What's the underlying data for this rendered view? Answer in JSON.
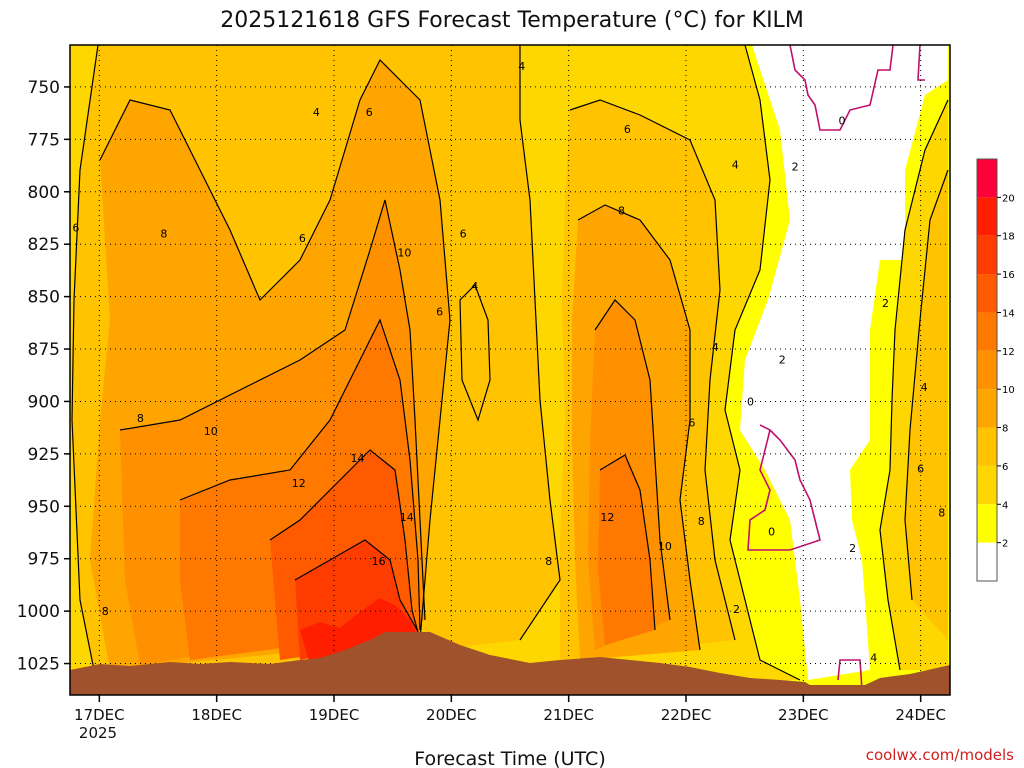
{
  "chart_data": {
    "type": "heatmap",
    "title": "2025121618 GFS Forecast Temperature (°C) for KILM",
    "xlabel": "Forecast Time (UTC)",
    "ylabel": "",
    "credit": "coolwx.com/models",
    "x_ticks": [
      "17DEC",
      "18DEC",
      "19DEC",
      "20DEC",
      "21DEC",
      "22DEC",
      "23DEC",
      "24DEC"
    ],
    "x_year": "2025",
    "x_range_days": [
      -0.25,
      7.25
    ],
    "y_ticks": [
      "750",
      "775",
      "800",
      "825",
      "850",
      "875",
      "900",
      "925",
      "950",
      "975",
      "1000",
      "1025"
    ],
    "y_range_hPa": [
      730,
      1040
    ],
    "colorbar": {
      "levels": [
        "2",
        "4",
        "6",
        "8",
        "10",
        "12",
        "14",
        "16",
        "18",
        "20"
      ],
      "colors": [
        "#ffffff",
        "#ffff00",
        "#ffd700",
        "#ffc300",
        "#ffa500",
        "#ff9000",
        "#ff7800",
        "#ff5a00",
        "#ff3c00",
        "#ff1e00",
        "#ff0038"
      ]
    },
    "colors": {
      "terrain": "#a0522d",
      "zero_contour": "#c0106e",
      "credit": "#d02020"
    },
    "contour_labels": [
      {
        "text": "4",
        "day": 1.85,
        "p": 762
      },
      {
        "text": "6",
        "day": 2.3,
        "p": 762
      },
      {
        "text": "4",
        "day": 3.6,
        "p": 740
      },
      {
        "text": "6",
        "day": 4.5,
        "p": 770
      },
      {
        "text": "4",
        "day": 5.42,
        "p": 787
      },
      {
        "text": "2",
        "day": 5.93,
        "p": 788
      },
      {
        "text": "0",
        "day": 6.33,
        "p": 766
      },
      {
        "text": "6",
        "day": -0.2,
        "p": 817
      },
      {
        "text": "8",
        "day": 0.55,
        "p": 820
      },
      {
        "text": "6",
        "day": 1.73,
        "p": 822
      },
      {
        "text": "10",
        "day": 2.6,
        "p": 829
      },
      {
        "text": "6",
        "day": 3.1,
        "p": 820
      },
      {
        "text": "8",
        "day": 4.45,
        "p": 809
      },
      {
        "text": "4",
        "day": 3.2,
        "p": 845
      },
      {
        "text": "6",
        "day": 2.9,
        "p": 857
      },
      {
        "text": "2",
        "day": 6.7,
        "p": 853
      },
      {
        "text": "4",
        "day": 5.25,
        "p": 874
      },
      {
        "text": "2",
        "day": 5.82,
        "p": 880
      },
      {
        "text": "4",
        "day": 7.03,
        "p": 893
      },
      {
        "text": "8",
        "day": 0.35,
        "p": 908
      },
      {
        "text": "10",
        "day": 0.95,
        "p": 914
      },
      {
        "text": "0",
        "day": 5.55,
        "p": 900
      },
      {
        "text": "6",
        "day": 5.05,
        "p": 910
      },
      {
        "text": "12",
        "day": 1.7,
        "p": 939
      },
      {
        "text": "14",
        "day": 2.2,
        "p": 927
      },
      {
        "text": "6",
        "day": 7.0,
        "p": 932
      },
      {
        "text": "14",
        "day": 2.62,
        "p": 955
      },
      {
        "text": "16",
        "day": 2.38,
        "p": 976
      },
      {
        "text": "12",
        "day": 4.33,
        "p": 955
      },
      {
        "text": "10",
        "day": 4.82,
        "p": 969
      },
      {
        "text": "8",
        "day": 5.13,
        "p": 957
      },
      {
        "text": "0",
        "day": 5.73,
        "p": 962
      },
      {
        "text": "2",
        "day": 6.42,
        "p": 970
      },
      {
        "text": "8",
        "day": 7.18,
        "p": 953
      },
      {
        "text": "8",
        "day": 3.83,
        "p": 976
      },
      {
        "text": "2",
        "day": 5.43,
        "p": 999
      },
      {
        "text": "8",
        "day": 0.05,
        "p": 1000
      },
      {
        "text": "4",
        "day": 6.6,
        "p": 1022
      }
    ]
  }
}
